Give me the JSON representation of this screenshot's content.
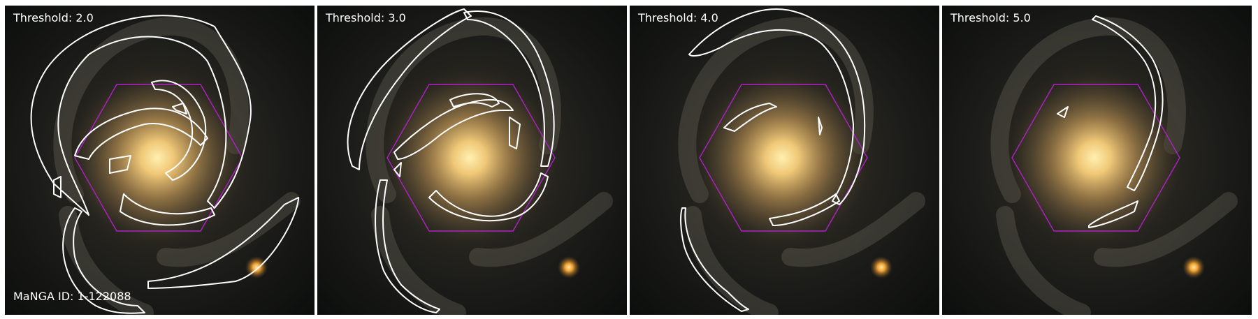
{
  "panels": [
    {
      "threshold_label": "Threshold: 2.0"
    },
    {
      "threshold_label": "Threshold: 3.0"
    },
    {
      "threshold_label": "Threshold: 4.0"
    },
    {
      "threshold_label": "Threshold: 5.0"
    }
  ],
  "galaxy": {
    "id_label": "MaNGA ID: 1-122088"
  },
  "colors": {
    "contour": "#ffffff",
    "ifu_hexagon": "#b020c8",
    "galaxy_core": "#ffd27a",
    "background": "#111111"
  }
}
